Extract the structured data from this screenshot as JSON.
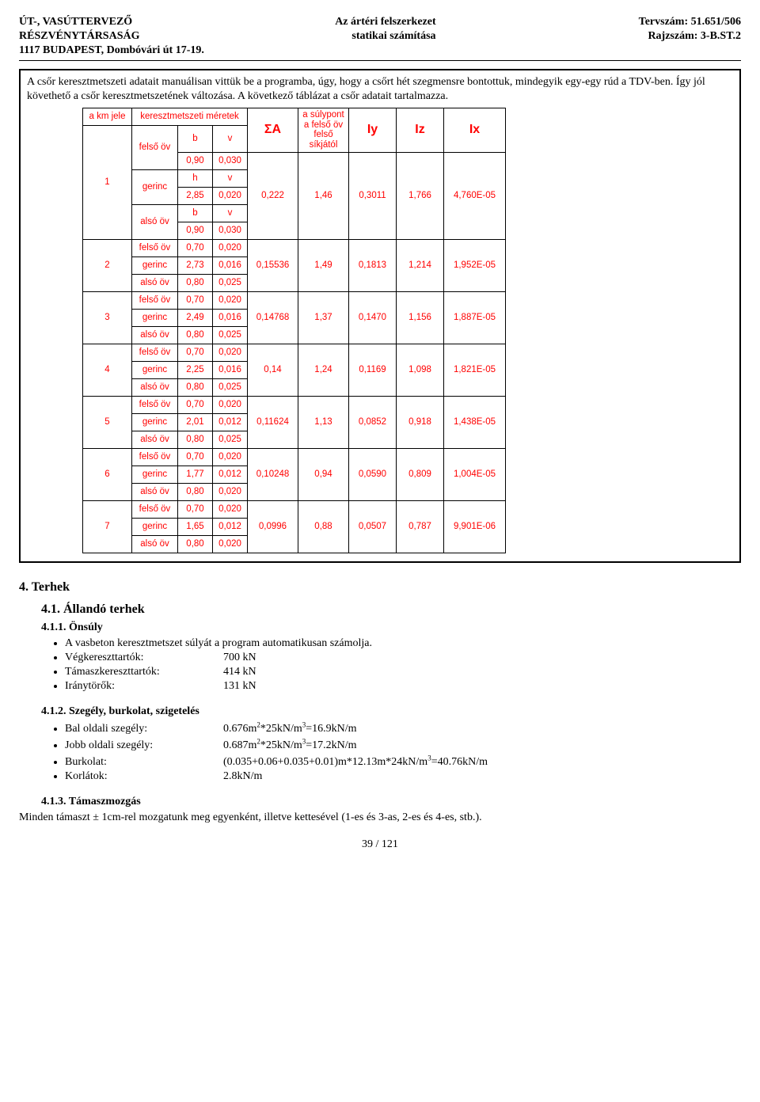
{
  "header": {
    "left1": "ÚT-, VASÚTTERVEZŐ",
    "left2": "RÉSZVÉNYTÁRSASÁG",
    "left3": "1117 BUDAPEST, Dombóvári út 17-19.",
    "mid1": "Az ártéri felszerkezet",
    "mid2": "statikai számítása",
    "right1": "Tervszám: 51.651/506",
    "right2": "Rajzszám: 3-B.ST.2"
  },
  "intro": "A csőr keresztmetszeti adatait manuálisan vittük be a programba, úgy, hogy a csőrt hét szegmensre bontottuk, mindegyik egy-egy rúd a TDV-ben. Így jól követhető a csőr keresztmetszetének változása. A következő táblázat a csőr adatait tartalmazza.",
  "table": {
    "head": {
      "km": "a km jele",
      "xs": "keresztmetszeti méretek",
      "sumA": "ΣA",
      "sulyp": "a súlypont a felső öv felső síkjától",
      "Iy": "Iy",
      "Iz": "Iz",
      "Ix": "Ix",
      "felso": "felső öv",
      "gerinc": "gerinc",
      "also": "alsó öv",
      "b": "b",
      "v": "v",
      "h": "h"
    },
    "rows": [
      {
        "km": "1",
        "special": true,
        "fb": "0,90",
        "fv": "0,030",
        "gh": "2,85",
        "gv": "0,020",
        "ab": "0,90",
        "av": "0,030",
        "sumA": "0,222",
        "sulyp": "1,46",
        "Iy": "0,3011",
        "Iz": "1,766",
        "Ix": "4,760E-05"
      },
      {
        "km": "2",
        "fb": "0,70",
        "fv": "0,020",
        "gh": "2,73",
        "gv": "0,016",
        "ab": "0,80",
        "av": "0,025",
        "sumA": "0,15536",
        "sulyp": "1,49",
        "Iy": "0,1813",
        "Iz": "1,214",
        "Ix": "1,952E-05"
      },
      {
        "km": "3",
        "fb": "0,70",
        "fv": "0,020",
        "gh": "2,49",
        "gv": "0,016",
        "ab": "0,80",
        "av": "0,025",
        "sumA": "0,14768",
        "sulyp": "1,37",
        "Iy": "0,1470",
        "Iz": "1,156",
        "Ix": "1,887E-05"
      },
      {
        "km": "4",
        "fb": "0,70",
        "fv": "0,020",
        "gh": "2,25",
        "gv": "0,016",
        "ab": "0,80",
        "av": "0,025",
        "sumA": "0,14",
        "sulyp": "1,24",
        "Iy": "0,1169",
        "Iz": "1,098",
        "Ix": "1,821E-05"
      },
      {
        "km": "5",
        "fb": "0,70",
        "fv": "0,020",
        "gh": "2,01",
        "gv": "0,012",
        "ab": "0,80",
        "av": "0,025",
        "sumA": "0,11624",
        "sulyp": "1,13",
        "Iy": "0,0852",
        "Iz": "0,918",
        "Ix": "1,438E-05"
      },
      {
        "km": "6",
        "fb": "0,70",
        "fv": "0,020",
        "gh": "1,77",
        "gv": "0,012",
        "ab": "0,80",
        "av": "0,020",
        "sumA": "0,10248",
        "sulyp": "0,94",
        "Iy": "0,0590",
        "Iz": "0,809",
        "Ix": "1,004E-05"
      },
      {
        "km": "7",
        "fb": "0,70",
        "fv": "0,020",
        "gh": "1,65",
        "gv": "0,012",
        "ab": "0,80",
        "av": "0,020",
        "sumA": "0,0996",
        "sulyp": "0,88",
        "Iy": "0,0507",
        "Iz": "0,787",
        "Ix": "9,901E-06"
      }
    ]
  },
  "s4": {
    "h": "4.   Terhek",
    "s41": "4.1.      Állandó terhek",
    "s411": "4.1.1.     Önsúly",
    "s411_txt": "A vasbeton keresztmetszet súlyát a program automatikusan számolja.",
    "b1k": "Végkereszttartók:",
    "b1v": "700 kN",
    "b2k": "Támaszkereszttartók:",
    "b2v": "414 kN",
    "b3k": "Iránytörők:",
    "b3v": "131 kN",
    "s412": "4.1.2.     Szegély, burkolat, szigetelés",
    "c1k": "Bal oldali szegély:",
    "c2k": "Jobb oldali szegély:",
    "c3k": "Burkolat:",
    "c4k": "Korlátok:",
    "c4v": "2.8kN/m",
    "s413": "4.1.3.     Támaszmozgás",
    "s413_txt": "Minden támaszt ± 1cm-rel mozgatunk meg egyenként, illetve kettesével (1-es és 3-as, 2-es és 4-es, stb.)."
  },
  "page": "39 / 121"
}
